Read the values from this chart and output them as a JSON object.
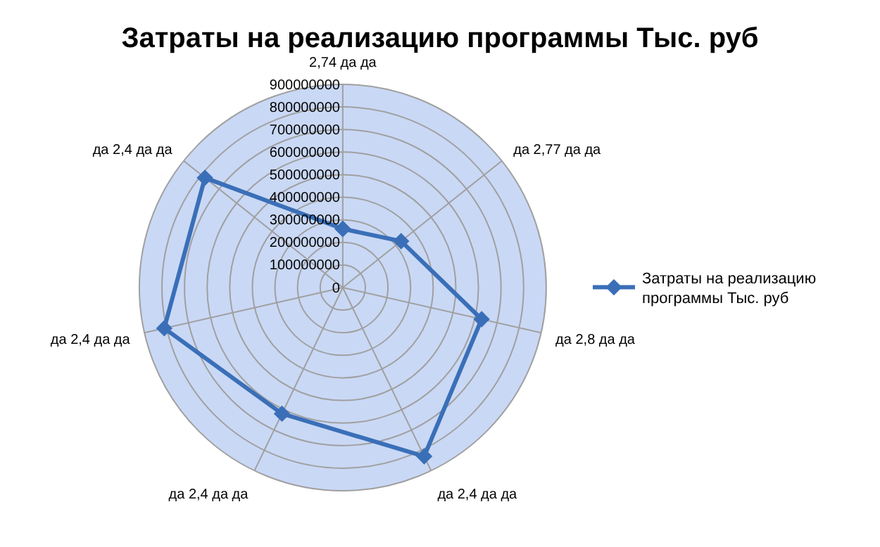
{
  "chart_data": {
    "type": "radar",
    "title": "Затраты на реализацию программы Тыс. руб",
    "categories": [
      "2,74 да да",
      "да 2,77 да да",
      "да 2,8 да да",
      "да 2,4 да да",
      "да 2,4 да да",
      "да 2,4 да да",
      "да 2,4 да да"
    ],
    "series": [
      {
        "name": "Затраты на реализацию программы Тыс. руб",
        "color": "#3a6fb8",
        "values": [
          260000000,
          330000000,
          630000000,
          830000000,
          620000000,
          810000000,
          780000000
        ]
      }
    ],
    "ylim": [
      0,
      900000000
    ],
    "yticks": [
      0,
      100000000,
      200000000,
      300000000,
      400000000,
      500000000,
      600000000,
      700000000,
      800000000,
      900000000
    ],
    "grid": true,
    "legend": "right",
    "marker": "diamond",
    "line_style": "solid"
  }
}
